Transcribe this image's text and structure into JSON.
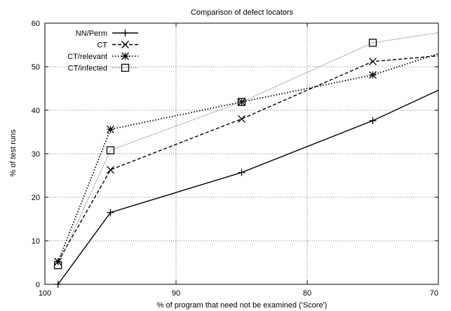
{
  "chart_data": {
    "type": "line",
    "title": "Comparison of defect locators",
    "xlabel": "% of program that need not be examined ('Score')",
    "ylabel": "% of test runs",
    "xlim": [
      100,
      70
    ],
    "ylim": [
      0,
      60
    ],
    "x_reversed": true,
    "grid": true,
    "legend_position": "top-left",
    "xticks": [
      100,
      90,
      80,
      70
    ],
    "xtick_labels": [
      "100",
      "90",
      "80",
      "70"
    ],
    "yticks": [
      0,
      10,
      20,
      30,
      40,
      50,
      60
    ],
    "ytick_labels": [
      "0",
      "10",
      "20",
      "30",
      "40",
      "50",
      "60"
    ],
    "series": [
      {
        "name": "NN/Perm",
        "marker": "plus",
        "line": "solid",
        "color": "#000000",
        "points": [
          [
            99,
            0
          ],
          [
            95,
            16.5
          ],
          [
            85,
            25.7
          ],
          [
            75,
            37.6
          ]
        ],
        "tail_to": [
          70,
          44.6
        ]
      },
      {
        "name": "CT",
        "marker": "cross",
        "line": "dashed",
        "color": "#000000",
        "points": [
          [
            99,
            5.2
          ],
          [
            95,
            26.3
          ],
          [
            85,
            38
          ],
          [
            75,
            51.2
          ]
        ],
        "tail_to": [
          70,
          52.5
        ]
      },
      {
        "name": "CT/relevant",
        "marker": "star",
        "line": "dotted",
        "color": "#000000",
        "points": [
          [
            99,
            5.2
          ],
          [
            95,
            35.6
          ],
          [
            85,
            41.9
          ],
          [
            75,
            48.1
          ]
        ],
        "tail_to": [
          70,
          53
        ]
      },
      {
        "name": "CT/infected",
        "marker": "square",
        "line": "fine-dotted",
        "color": "#666666",
        "points": [
          [
            99,
            4.4
          ],
          [
            95,
            30.8
          ],
          [
            85,
            41.9
          ],
          [
            75,
            55.5
          ]
        ],
        "tail_to": [
          70,
          57.8
        ]
      }
    ]
  }
}
